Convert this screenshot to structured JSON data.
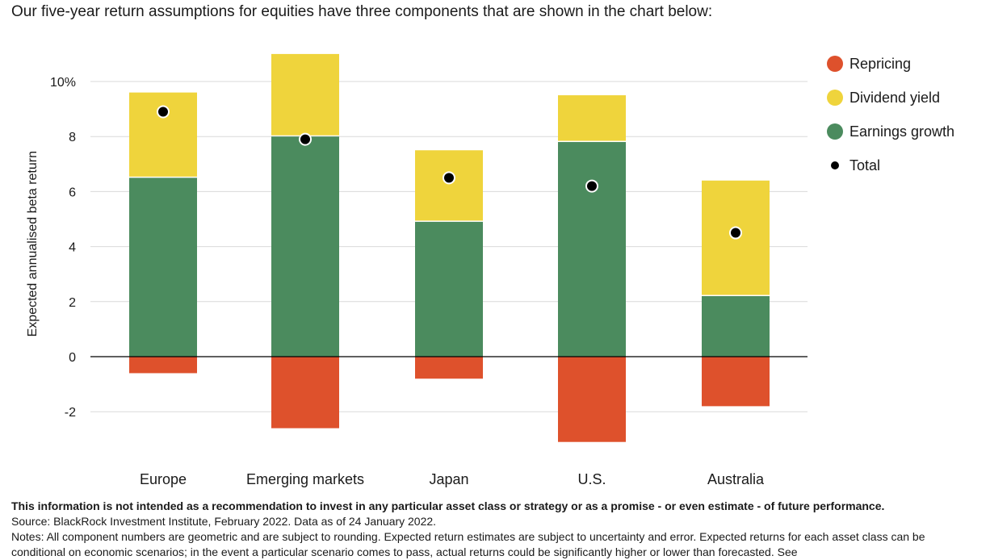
{
  "intro": "Our five-year return assumptions for equities have three components that are shown in the chart below:",
  "chart_data": {
    "type": "bar",
    "stacked": true,
    "categories": [
      "Europe",
      "Emerging markets",
      "Japan",
      "U.S.",
      "Australia"
    ],
    "series": [
      {
        "name": "Repricing",
        "color": "#de512c",
        "values": [
          -0.6,
          -2.6,
          -0.8,
          -3.1,
          -1.8
        ]
      },
      {
        "name": "Dividend yield",
        "color": "#efd43c",
        "values": [
          3.1,
          3.0,
          2.6,
          1.7,
          4.2
        ]
      },
      {
        "name": "Earnings growth",
        "color": "#4b8b5e",
        "values": [
          6.5,
          8.0,
          4.9,
          7.8,
          2.2
        ]
      }
    ],
    "total": {
      "name": "Total",
      "values": [
        8.9,
        7.9,
        6.5,
        6.2,
        4.5
      ]
    },
    "ylabel": "Expected annualised beta return",
    "ylim": [
      -3.2,
      11
    ],
    "yticks": [
      -2,
      0,
      2,
      4,
      6,
      8,
      10
    ],
    "ytick_labels": [
      "-2",
      "0",
      "2",
      "4",
      "6",
      "8",
      "10%"
    ],
    "grid": true,
    "legend_position": "right"
  },
  "legend": {
    "repricing": "Repricing",
    "dividend": "Dividend yield",
    "earnings": "Earnings growth",
    "total": "Total"
  },
  "footer": {
    "disclaimer": "This information is not intended as a recommendation to invest in any particular asset class or strategy or as a promise - or even estimate - of future performance.",
    "source": "Source: BlackRock Investment Institute, February 2022. Data as of 24 January 2022.",
    "notes": "Notes: All component numbers are geometric and are subject to rounding. Expected return estimates are subject to uncertainty and error. Expected returns for each asset class can be conditional on economic scenarios; in the event a particular scenario comes to pass, actual returns could be significantly higher or lower than forecasted. See"
  }
}
